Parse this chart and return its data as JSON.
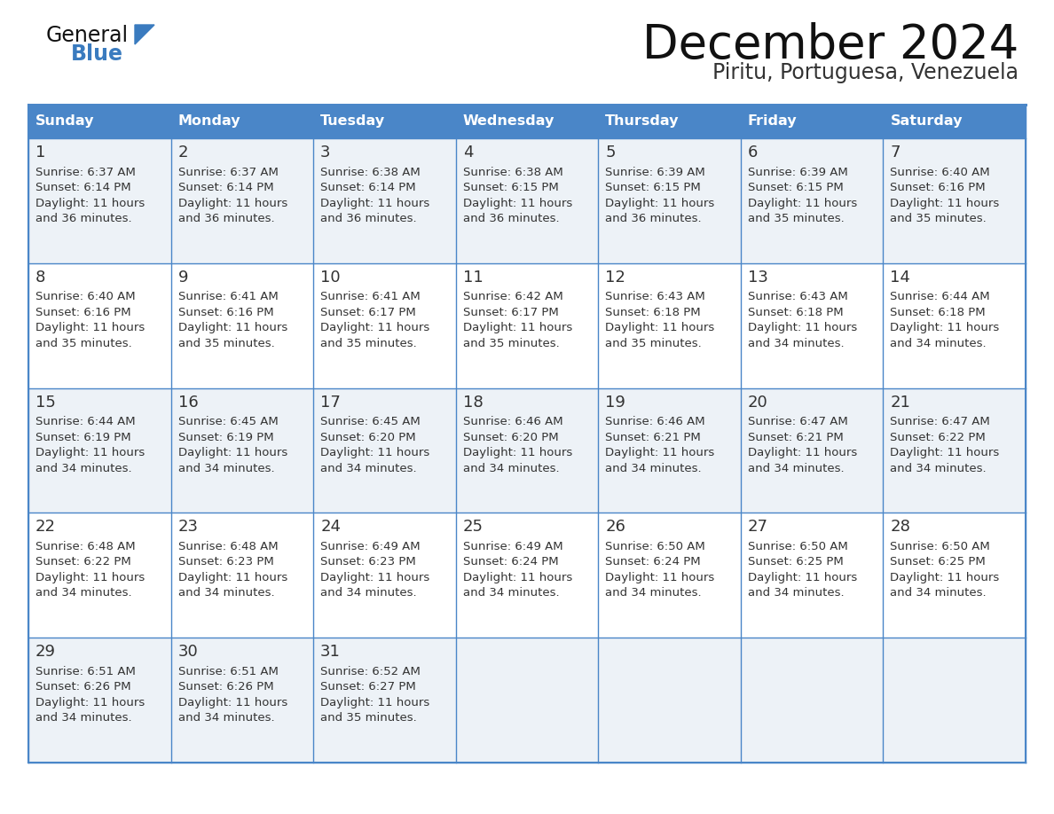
{
  "title": "December 2024",
  "subtitle": "Piritu, Portuguesa, Venezuela",
  "days_of_week": [
    "Sunday",
    "Monday",
    "Tuesday",
    "Wednesday",
    "Thursday",
    "Friday",
    "Saturday"
  ],
  "header_bg_color": "#4a86c8",
  "header_text_color": "#ffffff",
  "cell_bg_color_odd": "#edf2f7",
  "cell_bg_color_even": "#ffffff",
  "border_color": "#4a86c8",
  "text_color": "#333333",
  "title_color": "#111111",
  "subtitle_color": "#333333",
  "logo_black_color": "#111111",
  "logo_blue_color": "#3a7bbf",
  "weeks": [
    [
      {
        "day": "1",
        "sunrise": "6:37 AM",
        "sunset": "6:14 PM",
        "daylight": "11 hours",
        "daylight2": "and 36 minutes."
      },
      {
        "day": "2",
        "sunrise": "6:37 AM",
        "sunset": "6:14 PM",
        "daylight": "11 hours",
        "daylight2": "and 36 minutes."
      },
      {
        "day": "3",
        "sunrise": "6:38 AM",
        "sunset": "6:14 PM",
        "daylight": "11 hours",
        "daylight2": "and 36 minutes."
      },
      {
        "day": "4",
        "sunrise": "6:38 AM",
        "sunset": "6:15 PM",
        "daylight": "11 hours",
        "daylight2": "and 36 minutes."
      },
      {
        "day": "5",
        "sunrise": "6:39 AM",
        "sunset": "6:15 PM",
        "daylight": "11 hours",
        "daylight2": "and 36 minutes."
      },
      {
        "day": "6",
        "sunrise": "6:39 AM",
        "sunset": "6:15 PM",
        "daylight": "11 hours",
        "daylight2": "and 35 minutes."
      },
      {
        "day": "7",
        "sunrise": "6:40 AM",
        "sunset": "6:16 PM",
        "daylight": "11 hours",
        "daylight2": "and 35 minutes."
      }
    ],
    [
      {
        "day": "8",
        "sunrise": "6:40 AM",
        "sunset": "6:16 PM",
        "daylight": "11 hours",
        "daylight2": "and 35 minutes."
      },
      {
        "day": "9",
        "sunrise": "6:41 AM",
        "sunset": "6:16 PM",
        "daylight": "11 hours",
        "daylight2": "and 35 minutes."
      },
      {
        "day": "10",
        "sunrise": "6:41 AM",
        "sunset": "6:17 PM",
        "daylight": "11 hours",
        "daylight2": "and 35 minutes."
      },
      {
        "day": "11",
        "sunrise": "6:42 AM",
        "sunset": "6:17 PM",
        "daylight": "11 hours",
        "daylight2": "and 35 minutes."
      },
      {
        "day": "12",
        "sunrise": "6:43 AM",
        "sunset": "6:18 PM",
        "daylight": "11 hours",
        "daylight2": "and 35 minutes."
      },
      {
        "day": "13",
        "sunrise": "6:43 AM",
        "sunset": "6:18 PM",
        "daylight": "11 hours",
        "daylight2": "and 34 minutes."
      },
      {
        "day": "14",
        "sunrise": "6:44 AM",
        "sunset": "6:18 PM",
        "daylight": "11 hours",
        "daylight2": "and 34 minutes."
      }
    ],
    [
      {
        "day": "15",
        "sunrise": "6:44 AM",
        "sunset": "6:19 PM",
        "daylight": "11 hours",
        "daylight2": "and 34 minutes."
      },
      {
        "day": "16",
        "sunrise": "6:45 AM",
        "sunset": "6:19 PM",
        "daylight": "11 hours",
        "daylight2": "and 34 minutes."
      },
      {
        "day": "17",
        "sunrise": "6:45 AM",
        "sunset": "6:20 PM",
        "daylight": "11 hours",
        "daylight2": "and 34 minutes."
      },
      {
        "day": "18",
        "sunrise": "6:46 AM",
        "sunset": "6:20 PM",
        "daylight": "11 hours",
        "daylight2": "and 34 minutes."
      },
      {
        "day": "19",
        "sunrise": "6:46 AM",
        "sunset": "6:21 PM",
        "daylight": "11 hours",
        "daylight2": "and 34 minutes."
      },
      {
        "day": "20",
        "sunrise": "6:47 AM",
        "sunset": "6:21 PM",
        "daylight": "11 hours",
        "daylight2": "and 34 minutes."
      },
      {
        "day": "21",
        "sunrise": "6:47 AM",
        "sunset": "6:22 PM",
        "daylight": "11 hours",
        "daylight2": "and 34 minutes."
      }
    ],
    [
      {
        "day": "22",
        "sunrise": "6:48 AM",
        "sunset": "6:22 PM",
        "daylight": "11 hours",
        "daylight2": "and 34 minutes."
      },
      {
        "day": "23",
        "sunrise": "6:48 AM",
        "sunset": "6:23 PM",
        "daylight": "11 hours",
        "daylight2": "and 34 minutes."
      },
      {
        "day": "24",
        "sunrise": "6:49 AM",
        "sunset": "6:23 PM",
        "daylight": "11 hours",
        "daylight2": "and 34 minutes."
      },
      {
        "day": "25",
        "sunrise": "6:49 AM",
        "sunset": "6:24 PM",
        "daylight": "11 hours",
        "daylight2": "and 34 minutes."
      },
      {
        "day": "26",
        "sunrise": "6:50 AM",
        "sunset": "6:24 PM",
        "daylight": "11 hours",
        "daylight2": "and 34 minutes."
      },
      {
        "day": "27",
        "sunrise": "6:50 AM",
        "sunset": "6:25 PM",
        "daylight": "11 hours",
        "daylight2": "and 34 minutes."
      },
      {
        "day": "28",
        "sunrise": "6:50 AM",
        "sunset": "6:25 PM",
        "daylight": "11 hours",
        "daylight2": "and 34 minutes."
      }
    ],
    [
      {
        "day": "29",
        "sunrise": "6:51 AM",
        "sunset": "6:26 PM",
        "daylight": "11 hours",
        "daylight2": "and 34 minutes."
      },
      {
        "day": "30",
        "sunrise": "6:51 AM",
        "sunset": "6:26 PM",
        "daylight": "11 hours",
        "daylight2": "and 34 minutes."
      },
      {
        "day": "31",
        "sunrise": "6:52 AM",
        "sunset": "6:27 PM",
        "daylight": "11 hours",
        "daylight2": "and 35 minutes."
      },
      null,
      null,
      null,
      null
    ]
  ]
}
